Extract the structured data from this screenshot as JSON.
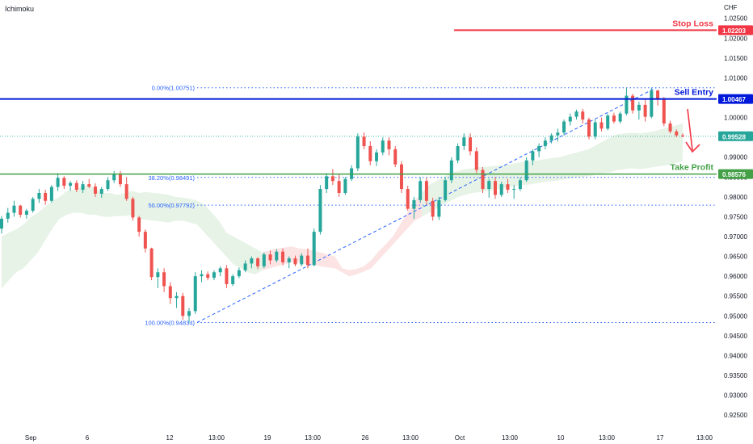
{
  "indicator_label": "Ichimoku",
  "currency": "CHF",
  "colors": {
    "up": "#26a69a",
    "down": "#ef5350",
    "stop_loss": "#f23645",
    "entry": "#0018d9",
    "target": "#43a047",
    "fib": "#2962ff",
    "cloud_bull": "#e6f3e6",
    "cloud_bear": "#fde4e4",
    "axis_text": "#131722",
    "current_price": "#26a69a"
  },
  "chart_data": {
    "type": "candlestick",
    "y_range": [
      0.923,
      1.028
    ],
    "y_ticks": [
      "1.02500",
      "1.02000",
      "1.01500",
      "1.01000",
      "1.00500",
      "1.00000",
      "0.99500",
      "0.99000",
      "0.98500",
      "0.98000",
      "0.97500",
      "0.97000",
      "0.96500",
      "0.96000",
      "0.95500",
      "0.95000",
      "0.94500",
      "0.94000",
      "0.93500",
      "0.93000",
      "0.92500"
    ],
    "x_ticks": [
      "Sep",
      "6",
      "12",
      "13:00",
      "19",
      "13:00",
      "26",
      "13:00",
      "Oct",
      "13:00",
      "10",
      "13:00",
      "17",
      "13:00"
    ],
    "levels": [
      {
        "name": "stop_loss",
        "label": "Stop Loss",
        "value": 1.02203,
        "price_tag": "1.02203"
      },
      {
        "name": "sell_entry",
        "label": "Sell Entry",
        "value": 1.00467,
        "price_tag": "1.00467"
      },
      {
        "name": "take_profit",
        "label": "Take Profit",
        "value": 0.98576,
        "price_tag": "0.98576"
      }
    ],
    "current_price": {
      "value": 0.99528,
      "price_tag": "0.99528"
    },
    "fibonacci": [
      {
        "label": "0.00%(1.00751)",
        "value": 1.00751
      },
      {
        "label": "38.20%(0.98491)",
        "value": 0.98491
      },
      {
        "label": "50.00%(0.97792)",
        "value": 0.97792
      },
      {
        "label": "100.00%(0.94834)",
        "value": 0.94834
      }
    ],
    "candles": [
      [
        0.972,
        0.9752,
        0.9708,
        0.9745
      ],
      [
        0.9745,
        0.9772,
        0.9735,
        0.976
      ],
      [
        0.976,
        0.979,
        0.975,
        0.9778
      ],
      [
        0.9778,
        0.978,
        0.9748,
        0.9755
      ],
      [
        0.9755,
        0.977,
        0.9745,
        0.9765
      ],
      [
        0.9765,
        0.98,
        0.976,
        0.9795
      ],
      [
        0.9795,
        0.982,
        0.9785,
        0.981
      ],
      [
        0.981,
        0.9818,
        0.978,
        0.979
      ],
      [
        0.979,
        0.983,
        0.9786,
        0.9825
      ],
      [
        0.9825,
        0.986,
        0.9815,
        0.9848
      ],
      [
        0.9848,
        0.9852,
        0.982,
        0.9828
      ],
      [
        0.9828,
        0.984,
        0.9815,
        0.9835
      ],
      [
        0.9835,
        0.9842,
        0.9812,
        0.9818
      ],
      [
        0.9818,
        0.984,
        0.981,
        0.9832
      ],
      [
        0.9832,
        0.9845,
        0.9822,
        0.9826
      ],
      [
        0.9826,
        0.9834,
        0.98,
        0.9808
      ],
      [
        0.9808,
        0.9825,
        0.9798,
        0.982
      ],
      [
        0.982,
        0.985,
        0.9815,
        0.9842
      ],
      [
        0.9842,
        0.9865,
        0.9835,
        0.9858
      ],
      [
        0.9858,
        0.9865,
        0.9825,
        0.9832
      ],
      [
        0.9832,
        0.985,
        0.979,
        0.9795
      ],
      [
        0.9795,
        0.98,
        0.974,
        0.9748
      ],
      [
        0.9748,
        0.9752,
        0.97,
        0.9712
      ],
      [
        0.9712,
        0.9718,
        0.966,
        0.967
      ],
      [
        0.967,
        0.9672,
        0.959,
        0.9598
      ],
      [
        0.9598,
        0.962,
        0.957,
        0.961
      ],
      [
        0.961,
        0.962,
        0.956,
        0.9575
      ],
      [
        0.9575,
        0.9585,
        0.953,
        0.9545
      ],
      [
        0.9545,
        0.956,
        0.952,
        0.955
      ],
      [
        0.955,
        0.9558,
        0.949,
        0.95
      ],
      [
        0.95,
        0.952,
        0.9483,
        0.9512
      ],
      [
        0.9512,
        0.961,
        0.9505,
        0.96
      ],
      [
        0.96,
        0.9615,
        0.9585,
        0.9605
      ],
      [
        0.9605,
        0.9612,
        0.959,
        0.9596
      ],
      [
        0.9596,
        0.9615,
        0.959,
        0.961
      ],
      [
        0.961,
        0.9625,
        0.96,
        0.962
      ],
      [
        0.962,
        0.9628,
        0.957,
        0.958
      ],
      [
        0.958,
        0.9605,
        0.9575,
        0.96
      ],
      [
        0.96,
        0.9622,
        0.9595,
        0.9615
      ],
      [
        0.9615,
        0.964,
        0.961,
        0.9632
      ],
      [
        0.9632,
        0.965,
        0.962,
        0.9645
      ],
      [
        0.9645,
        0.9648,
        0.9618,
        0.9625
      ],
      [
        0.9625,
        0.966,
        0.962,
        0.9655
      ],
      [
        0.9655,
        0.9665,
        0.963,
        0.964
      ],
      [
        0.964,
        0.9668,
        0.9635,
        0.9662
      ],
      [
        0.9662,
        0.967,
        0.9628,
        0.9635
      ],
      [
        0.9635,
        0.965,
        0.962,
        0.9645
      ],
      [
        0.9645,
        0.9652,
        0.9625,
        0.963
      ],
      [
        0.963,
        0.9658,
        0.9625,
        0.9652
      ],
      [
        0.9652,
        0.967,
        0.962,
        0.9628
      ],
      [
        0.9628,
        0.972,
        0.9625,
        0.9712
      ],
      [
        0.9712,
        0.983,
        0.9705,
        0.982
      ],
      [
        0.982,
        0.986,
        0.981,
        0.9852
      ],
      [
        0.9852,
        0.987,
        0.983,
        0.984
      ],
      [
        0.984,
        0.9858,
        0.98,
        0.981
      ],
      [
        0.981,
        0.985,
        0.9805,
        0.9845
      ],
      [
        0.9845,
        0.988,
        0.984,
        0.9872
      ],
      [
        0.9872,
        0.996,
        0.9865,
        0.9952
      ],
      [
        0.9952,
        0.9962,
        0.992,
        0.9928
      ],
      [
        0.9928,
        0.994,
        0.988,
        0.989
      ],
      [
        0.989,
        0.992,
        0.9878,
        0.9912
      ],
      [
        0.9912,
        0.995,
        0.9905,
        0.9942
      ],
      [
        0.9942,
        0.995,
        0.9905,
        0.992
      ],
      [
        0.992,
        0.9928,
        0.9875,
        0.9882
      ],
      [
        0.9882,
        0.989,
        0.981,
        0.982
      ],
      [
        0.982,
        0.9828,
        0.9765,
        0.977
      ],
      [
        0.977,
        0.98,
        0.9745,
        0.9792
      ],
      [
        0.9792,
        0.985,
        0.9785,
        0.984
      ],
      [
        0.984,
        0.9848,
        0.978,
        0.979
      ],
      [
        0.979,
        0.9798,
        0.974,
        0.975
      ],
      [
        0.975,
        0.98,
        0.9742,
        0.9792
      ],
      [
        0.9792,
        0.985,
        0.9788,
        0.9842
      ],
      [
        0.9842,
        0.99,
        0.9835,
        0.9892
      ],
      [
        0.9892,
        0.9935,
        0.9885,
        0.9928
      ],
      [
        0.9928,
        0.996,
        0.9918,
        0.995
      ],
      [
        0.995,
        0.996,
        0.9905,
        0.9915
      ],
      [
        0.9915,
        0.9925,
        0.986,
        0.9868
      ],
      [
        0.9868,
        0.9875,
        0.981,
        0.982
      ],
      [
        0.982,
        0.9845,
        0.9798,
        0.984
      ],
      [
        0.984,
        0.985,
        0.9795,
        0.9805
      ],
      [
        0.9805,
        0.9838,
        0.98,
        0.9832
      ],
      [
        0.9832,
        0.9845,
        0.981,
        0.9818
      ],
      [
        0.9818,
        0.983,
        0.9795,
        0.982
      ],
      [
        0.982,
        0.9848,
        0.9815,
        0.9842
      ],
      [
        0.9842,
        0.99,
        0.9838,
        0.9892
      ],
      [
        0.9892,
        0.992,
        0.988,
        0.9915
      ],
      [
        0.9915,
        0.9935,
        0.99,
        0.9928
      ],
      [
        0.9928,
        0.995,
        0.992,
        0.9942
      ],
      [
        0.9942,
        0.996,
        0.9935,
        0.9955
      ],
      [
        0.9955,
        0.9972,
        0.994,
        0.9962
      ],
      [
        0.9962,
        0.9995,
        0.9955,
        0.999
      ],
      [
        0.999,
        1.001,
        0.998,
        1.0002
      ],
      [
        1.0002,
        1.002,
        0.9995,
        1.0015
      ],
      [
        1.0015,
        1.0022,
        0.9985,
        0.9995
      ],
      [
        0.9995,
        1.0,
        0.9945,
        0.9952
      ],
      [
        0.9952,
        0.9995,
        0.9945,
        0.9988
      ],
      [
        0.9988,
        1.0,
        0.9965,
        0.9972
      ],
      [
        0.9972,
        1.001,
        0.9968,
        1.0005
      ],
      [
        1.0005,
        1.0012,
        0.9985,
        0.999
      ],
      [
        0.999,
        1.0015,
        0.9985,
        1.001
      ],
      [
        1.001,
        1.0075,
        1.0005,
        1.0055
      ],
      [
        1.0055,
        1.006,
        1.001,
        1.0018
      ],
      [
        1.0018,
        1.004,
        0.9995,
        1.0032
      ],
      [
        1.0032,
        1.0045,
        0.999,
        1.0002
      ],
      [
        1.0002,
        1.0075,
        0.9998,
        1.0068
      ],
      [
        1.0068,
        1.007,
        1.003,
        1.0045
      ],
      [
        1.0045,
        1.0052,
        0.9978,
        0.9985
      ],
      [
        0.9985,
        0.9992,
        0.996,
        0.9965
      ],
      [
        0.9965,
        0.997,
        0.995,
        0.9955
      ],
      [
        0.9955,
        0.996,
        0.995,
        0.9953
      ]
    ],
    "ichimoku_cloud": [
      [
        0.957,
        0.97
      ],
      [
        0.959,
        0.971
      ],
      [
        0.961,
        0.9718
      ],
      [
        0.962,
        0.973
      ],
      [
        0.964,
        0.9748
      ],
      [
        0.966,
        0.976
      ],
      [
        0.969,
        0.9775
      ],
      [
        0.972,
        0.979
      ],
      [
        0.9745,
        0.98
      ],
      [
        0.9755,
        0.9815
      ],
      [
        0.976,
        0.9818
      ],
      [
        0.976,
        0.9825
      ],
      [
        0.9755,
        0.983
      ],
      [
        0.9755,
        0.982
      ],
      [
        0.975,
        0.981
      ],
      [
        0.975,
        0.981
      ],
      [
        0.9752,
        0.9805
      ],
      [
        0.9752,
        0.981
      ],
      [
        0.9755,
        0.9815
      ],
      [
        0.9745,
        0.981
      ],
      [
        0.9742,
        0.9812
      ],
      [
        0.974,
        0.981
      ],
      [
        0.9738,
        0.9808
      ],
      [
        0.9735,
        0.9805
      ],
      [
        0.974,
        0.98
      ],
      [
        0.974,
        0.9798
      ],
      [
        0.9735,
        0.9795
      ],
      [
        0.973,
        0.979
      ],
      [
        0.971,
        0.978
      ],
      [
        0.969,
        0.976
      ],
      [
        0.967,
        0.974
      ],
      [
        0.965,
        0.971
      ],
      [
        0.963,
        0.97
      ],
      [
        0.962,
        0.969
      ],
      [
        0.961,
        0.968
      ],
      [
        0.9605,
        0.967
      ],
      [
        0.9615,
        0.966
      ],
      [
        0.962,
        0.9665
      ],
      [
        0.9625,
        0.967
      ],
      [
        0.963,
        0.9672
      ],
      [
        0.9635,
        0.9675
      ],
      [
        0.9635,
        0.967
      ],
      [
        0.963,
        0.9668
      ],
      [
        0.9628,
        0.9665
      ],
      [
        0.9625,
        0.966
      ],
      [
        0.9622,
        0.9655
      ],
      [
        0.962,
        0.965
      ],
      [
        0.961,
        0.962
      ],
      [
        0.96,
        0.9615
      ],
      [
        0.9605,
        0.9618
      ],
      [
        0.9612,
        0.9625
      ],
      [
        0.962,
        0.964
      ],
      [
        0.964,
        0.9662
      ],
      [
        0.966,
        0.968
      ],
      [
        0.968,
        0.97
      ],
      [
        0.97,
        0.973
      ],
      [
        0.972,
        0.976
      ],
      [
        0.974,
        0.979
      ],
      [
        0.975,
        0.981
      ],
      [
        0.976,
        0.983
      ],
      [
        0.977,
        0.984
      ],
      [
        0.978,
        0.985
      ],
      [
        0.979,
        0.986
      ],
      [
        0.98,
        0.9865
      ],
      [
        0.9805,
        0.987
      ],
      [
        0.981,
        0.9872
      ],
      [
        0.9812,
        0.9875
      ],
      [
        0.9815,
        0.9876
      ],
      [
        0.9818,
        0.9878
      ],
      [
        0.982,
        0.988
      ],
      [
        0.9825,
        0.9882
      ],
      [
        0.9828,
        0.9885
      ],
      [
        0.983,
        0.9888
      ],
      [
        0.9832,
        0.989
      ],
      [
        0.9835,
        0.9892
      ],
      [
        0.9838,
        0.9895
      ],
      [
        0.984,
        0.9898
      ],
      [
        0.9842,
        0.99
      ],
      [
        0.9845,
        0.9905
      ],
      [
        0.9848,
        0.991
      ],
      [
        0.985,
        0.9915
      ],
      [
        0.9852,
        0.992
      ],
      [
        0.9856,
        0.993
      ],
      [
        0.986,
        0.994
      ],
      [
        0.9862,
        0.995
      ],
      [
        0.9868,
        0.9958
      ],
      [
        0.987,
        0.996
      ],
      [
        0.9872,
        0.9962
      ],
      [
        0.987,
        0.996
      ],
      [
        0.9872,
        0.9962
      ],
      [
        0.9875,
        0.9965
      ],
      [
        0.9878,
        0.997
      ],
      [
        0.988,
        0.9975
      ],
      [
        0.9885,
        0.998
      ],
      [
        0.989,
        0.9985
      ]
    ]
  }
}
